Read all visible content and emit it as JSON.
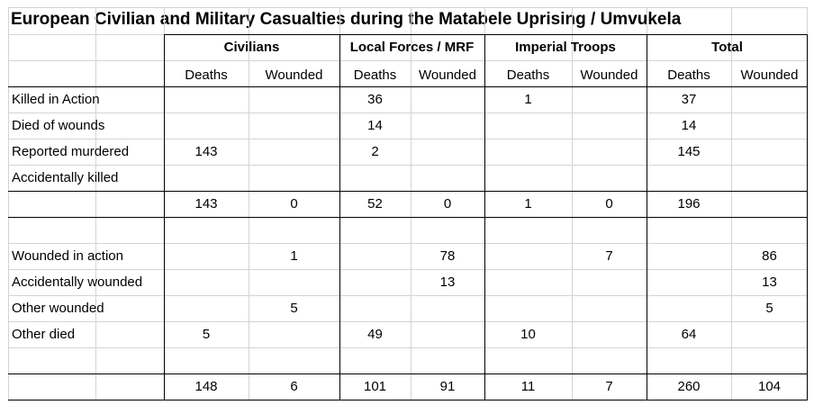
{
  "title": "European Civilian and Military Casualties during the Matabele Uprising / Umvukela",
  "groups": [
    "Civilians",
    "Local Forces / MRF",
    "Imperial Troops",
    "Total"
  ],
  "sub_headers": [
    "Deaths",
    "Wounded",
    "Deaths",
    "Wounded",
    "Deaths",
    "Wounded",
    "Deaths",
    "Wounded"
  ],
  "rows": [
    {
      "label": "Killed in Action",
      "values": [
        "",
        "",
        "36",
        "",
        "1",
        "",
        "37",
        ""
      ]
    },
    {
      "label": "Died of wounds",
      "values": [
        "",
        "",
        "14",
        "",
        "",
        "",
        "14",
        ""
      ]
    },
    {
      "label": "Reported murdered",
      "values": [
        "143",
        "",
        "2",
        "",
        "",
        "",
        "145",
        ""
      ]
    },
    {
      "label": "Accidentally killed",
      "values": [
        "",
        "",
        "",
        "",
        "",
        "",
        "",
        ""
      ]
    },
    {
      "label": "",
      "values": [
        "143",
        "0",
        "52",
        "0",
        "1",
        "0",
        "196",
        ""
      ]
    },
    {
      "label": "",
      "values": [
        "",
        "",
        "",
        "",
        "",
        "",
        "",
        ""
      ]
    },
    {
      "label": "Wounded in action",
      "values": [
        "",
        "1",
        "",
        "78",
        "",
        "7",
        "",
        "86"
      ]
    },
    {
      "label": "Accidentally wounded",
      "values": [
        "",
        "",
        "",
        "13",
        "",
        "",
        "",
        "13"
      ]
    },
    {
      "label": "Other wounded",
      "values": [
        "",
        "5",
        "",
        "",
        "",
        "",
        "",
        "5"
      ]
    },
    {
      "label": "Other died",
      "values": [
        "5",
        "",
        "49",
        "",
        "10",
        "",
        "64",
        ""
      ]
    },
    {
      "label": "",
      "values": [
        "",
        "",
        "",
        "",
        "",
        "",
        "",
        ""
      ]
    },
    {
      "label": "",
      "values": [
        "148",
        "6",
        "101",
        "91",
        "11",
        "7",
        "260",
        "104"
      ]
    }
  ]
}
